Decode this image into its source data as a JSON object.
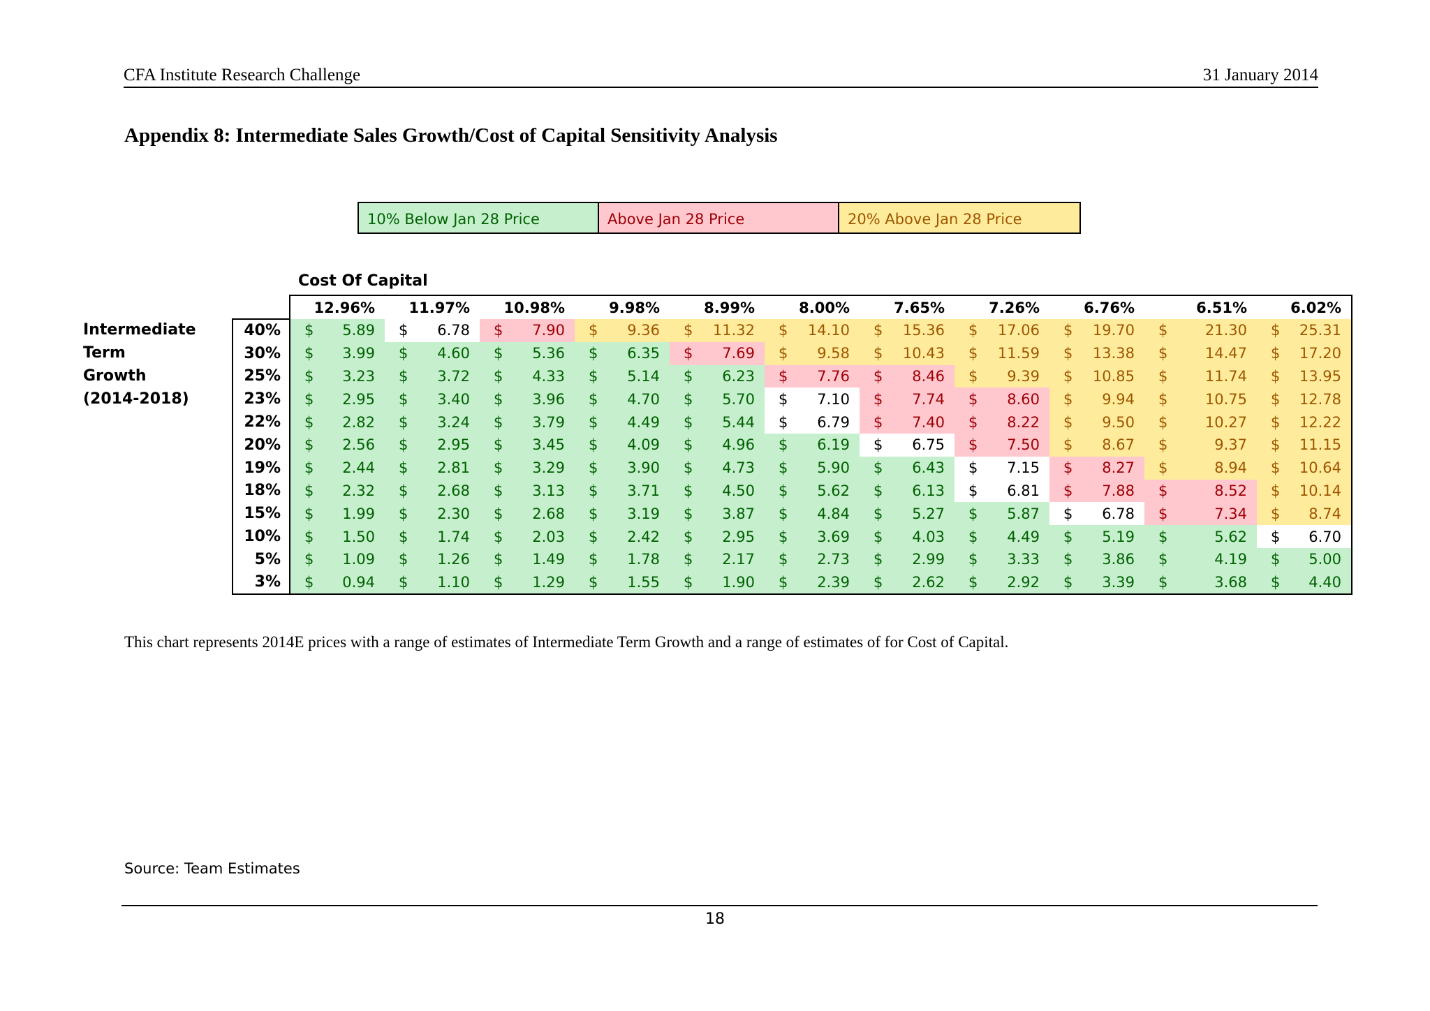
{
  "header": {
    "left": "CFA Institute Research Challenge",
    "right": "31 January 2014"
  },
  "title": "Appendix 8: Intermediate Sales Growth/Cost of Capital Sensitivity Analysis",
  "legend": [
    {
      "label": "10% Below Jan 28 Price",
      "color": "#c6efce"
    },
    {
      "label": "Above Jan 28 Price",
      "color": "#ffc7ce"
    },
    {
      "label": "20% Above Jan 28 Price",
      "color": "#ffeb9c"
    }
  ],
  "cost_of_capital_label": "Cost Of Capital",
  "row_axis_label": [
    "Intermediate",
    "Term",
    "Growth",
    "(2014-2018)"
  ],
  "currency_symbol": "$",
  "chart_data": {
    "type": "table",
    "columns": [
      "12.96%",
      "11.97%",
      "10.98%",
      "9.98%",
      "8.99%",
      "8.00%",
      "7.65%",
      "7.26%",
      "6.76%",
      "6.51%",
      "6.02%"
    ],
    "rows": [
      {
        "growth": "40%",
        "values": [
          "5.89",
          "6.78",
          "7.90",
          "9.36",
          "11.32",
          "14.10",
          "15.36",
          "17.06",
          "19.70",
          "21.30",
          "25.31"
        ],
        "colors": [
          "g",
          "w",
          "r",
          "y",
          "y",
          "y",
          "y",
          "y",
          "y",
          "y",
          "y"
        ]
      },
      {
        "growth": "30%",
        "values": [
          "3.99",
          "4.60",
          "5.36",
          "6.35",
          "7.69",
          "9.58",
          "10.43",
          "11.59",
          "13.38",
          "14.47",
          "17.20"
        ],
        "colors": [
          "g",
          "g",
          "g",
          "g",
          "r",
          "y",
          "y",
          "y",
          "y",
          "y",
          "y"
        ]
      },
      {
        "growth": "25%",
        "values": [
          "3.23",
          "3.72",
          "4.33",
          "5.14",
          "6.23",
          "7.76",
          "8.46",
          "9.39",
          "10.85",
          "11.74",
          "13.95"
        ],
        "colors": [
          "g",
          "g",
          "g",
          "g",
          "g",
          "r",
          "r",
          "y",
          "y",
          "y",
          "y"
        ]
      },
      {
        "growth": "23%",
        "values": [
          "2.95",
          "3.40",
          "3.96",
          "4.70",
          "5.70",
          "7.10",
          "7.74",
          "8.60",
          "9.94",
          "10.75",
          "12.78"
        ],
        "colors": [
          "g",
          "g",
          "g",
          "g",
          "g",
          "w",
          "r",
          "r",
          "y",
          "y",
          "y"
        ]
      },
      {
        "growth": "22%",
        "values": [
          "2.82",
          "3.24",
          "3.79",
          "4.49",
          "5.44",
          "6.79",
          "7.40",
          "8.22",
          "9.50",
          "10.27",
          "12.22"
        ],
        "colors": [
          "g",
          "g",
          "g",
          "g",
          "g",
          "w",
          "r",
          "r",
          "y",
          "y",
          "y"
        ]
      },
      {
        "growth": "20%",
        "values": [
          "2.56",
          "2.95",
          "3.45",
          "4.09",
          "4.96",
          "6.19",
          "6.75",
          "7.50",
          "8.67",
          "9.37",
          "11.15"
        ],
        "colors": [
          "g",
          "g",
          "g",
          "g",
          "g",
          "g",
          "w",
          "r",
          "y",
          "y",
          "y"
        ]
      },
      {
        "growth": "19%",
        "values": [
          "2.44",
          "2.81",
          "3.29",
          "3.90",
          "4.73",
          "5.90",
          "6.43",
          "7.15",
          "8.27",
          "8.94",
          "10.64"
        ],
        "colors": [
          "g",
          "g",
          "g",
          "g",
          "g",
          "g",
          "g",
          "w",
          "r",
          "y",
          "y"
        ]
      },
      {
        "growth": "18%",
        "values": [
          "2.32",
          "2.68",
          "3.13",
          "3.71",
          "4.50",
          "5.62",
          "6.13",
          "6.81",
          "7.88",
          "8.52",
          "10.14"
        ],
        "colors": [
          "g",
          "g",
          "g",
          "g",
          "g",
          "g",
          "g",
          "w",
          "r",
          "r",
          "y"
        ]
      },
      {
        "growth": "15%",
        "values": [
          "1.99",
          "2.30",
          "2.68",
          "3.19",
          "3.87",
          "4.84",
          "5.27",
          "5.87",
          "6.78",
          "7.34",
          "8.74"
        ],
        "colors": [
          "g",
          "g",
          "g",
          "g",
          "g",
          "g",
          "g",
          "g",
          "w",
          "r",
          "y"
        ]
      },
      {
        "growth": "10%",
        "values": [
          "1.50",
          "1.74",
          "2.03",
          "2.42",
          "2.95",
          "3.69",
          "4.03",
          "4.49",
          "5.19",
          "5.62",
          "6.70"
        ],
        "colors": [
          "g",
          "g",
          "g",
          "g",
          "g",
          "g",
          "g",
          "g",
          "g",
          "g",
          "w"
        ]
      },
      {
        "growth": "5%",
        "values": [
          "1.09",
          "1.26",
          "1.49",
          "1.78",
          "2.17",
          "2.73",
          "2.99",
          "3.33",
          "3.86",
          "4.19",
          "5.00"
        ],
        "colors": [
          "g",
          "g",
          "g",
          "g",
          "g",
          "g",
          "g",
          "g",
          "g",
          "g",
          "g"
        ]
      },
      {
        "growth": "3%",
        "values": [
          "0.94",
          "1.10",
          "1.29",
          "1.55",
          "1.90",
          "2.39",
          "2.62",
          "2.92",
          "3.39",
          "3.68",
          "4.40"
        ],
        "colors": [
          "g",
          "g",
          "g",
          "g",
          "g",
          "g",
          "g",
          "g",
          "g",
          "g",
          "g"
        ]
      }
    ]
  },
  "caption": "This chart represents 2014E prices with a range of estimates of Intermediate Term Growth and a range of estimates of for Cost of Capital.",
  "source": "Source: Team Estimates",
  "page_number": "18"
}
